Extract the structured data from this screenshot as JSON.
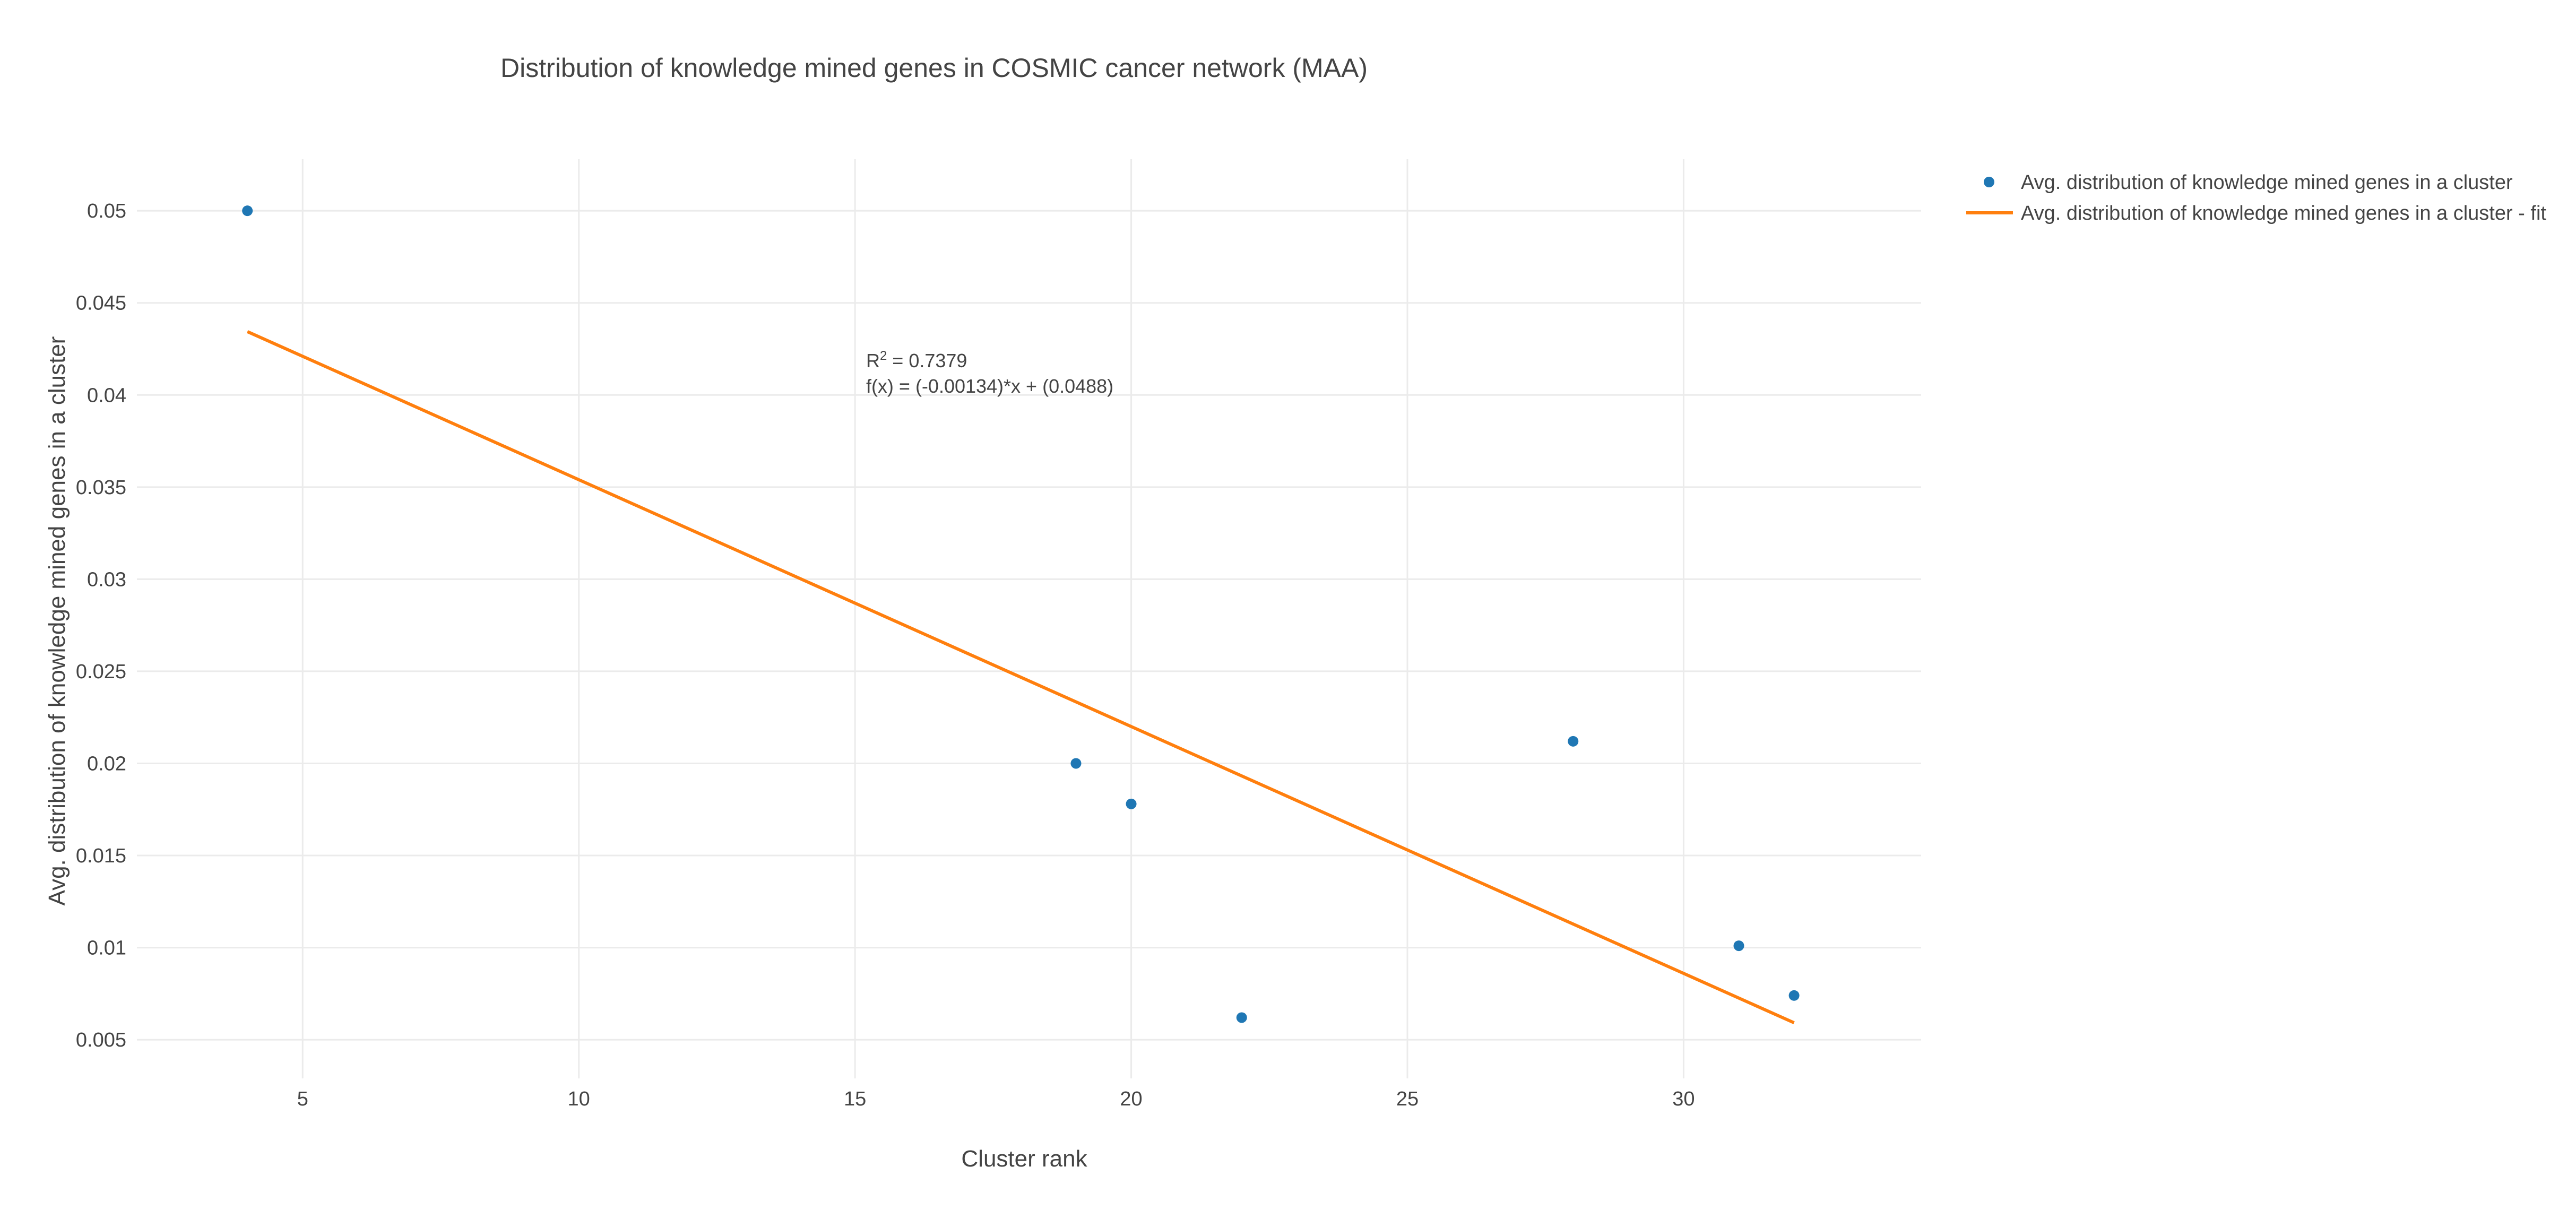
{
  "chart_data": {
    "type": "scatter",
    "title": "Distribution of knowledge mined genes in COSMIC cancer network (MAA)",
    "xlabel": "Cluster rank",
    "ylabel": "Avg. distribution of knowledge mined genes in a cluster",
    "xlim": [
      2,
      34.3
    ],
    "ylim": [
      0.0029,
      0.0528
    ],
    "xticks": [
      5,
      10,
      15,
      20,
      25,
      30
    ],
    "yticks": [
      0.005,
      0.01,
      0.015,
      0.02,
      0.025,
      0.03,
      0.035,
      0.04,
      0.045,
      0.05
    ],
    "xtick_labels": [
      "5",
      "10",
      "15",
      "20",
      "25",
      "30"
    ],
    "ytick_labels": [
      "0.005",
      "0.01",
      "0.015",
      "0.02",
      "0.025",
      "0.03",
      "0.035",
      "0.04",
      "0.045",
      "0.05"
    ],
    "grid": true,
    "legend_position": "top-right",
    "series": [
      {
        "name": "Avg. distribution of knowledge mined genes in a cluster",
        "mode": "markers",
        "color": "#1f77b4",
        "x": [
          4,
          19,
          20,
          22,
          28,
          31,
          32
        ],
        "y": [
          0.05,
          0.02,
          0.0178,
          0.0062,
          0.0212,
          0.0101,
          0.0074
        ]
      },
      {
        "name": "Avg. distribution of knowledge mined genes in a cluster - fit",
        "mode": "lines",
        "color": "#ff7f0e",
        "x": [
          4,
          32
        ],
        "y": [
          0.04344,
          0.00592
        ]
      }
    ],
    "annotation": {
      "r2_prefix": "R",
      "r2_sup": "2",
      "r2_value": " = 0.7379",
      "formula": "f(x) = (-0.00134)*x + (0.0488)",
      "x": 15.2,
      "y": 0.0415
    }
  }
}
